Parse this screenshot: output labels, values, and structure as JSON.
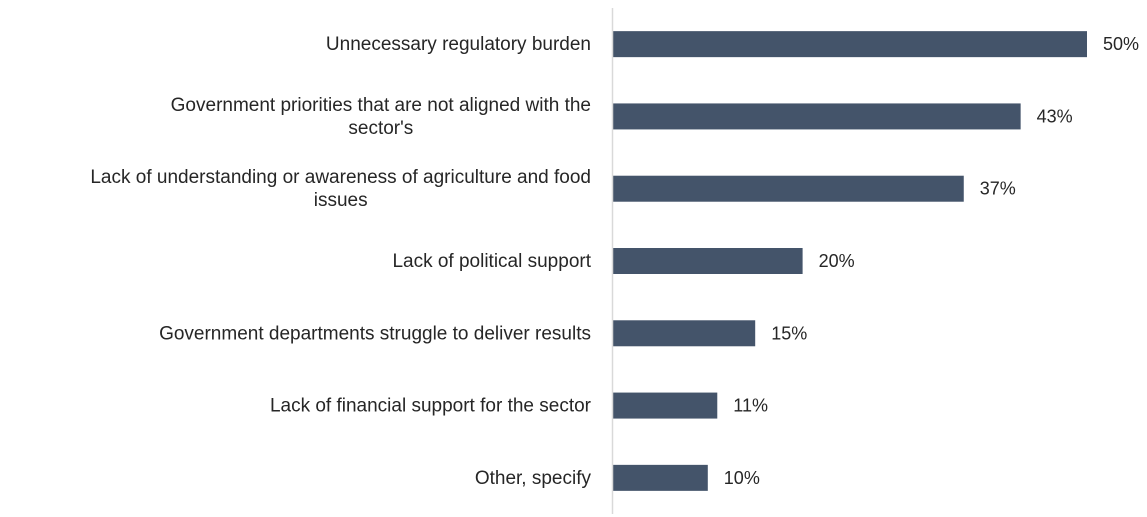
{
  "chart_data": {
    "type": "bar",
    "orientation": "horizontal",
    "title": "",
    "xlabel": "",
    "ylabel": "",
    "categories": [
      [
        "Unnecessary regulatory burden"
      ],
      [
        "Government priorities that are not aligned with the",
        "sector's"
      ],
      [
        "Lack of understanding or awareness of agriculture and food",
        "issues"
      ],
      [
        "Lack of political support"
      ],
      [
        "Government departments struggle to deliver results"
      ],
      [
        "Lack of financial support for the sector"
      ],
      [
        "Other, specify"
      ]
    ],
    "values": [
      50,
      43,
      37,
      20,
      15,
      11,
      10
    ],
    "value_labels": [
      "50%",
      "43%",
      "37%",
      "20%",
      "15%",
      "11%",
      "10%"
    ],
    "xlim": [
      0,
      50
    ],
    "grid": false,
    "legend": "none",
    "bar_color": "#44546a",
    "axis_color": "#d9d9d9"
  }
}
